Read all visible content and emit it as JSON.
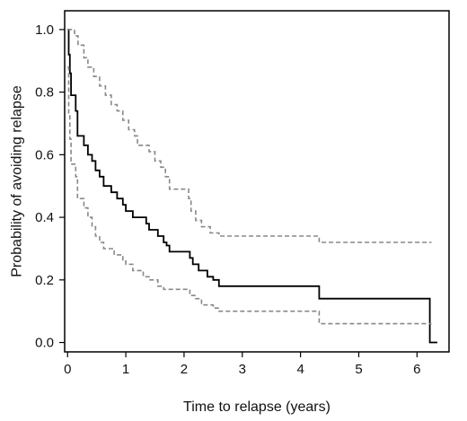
{
  "chart_data": {
    "type": "line",
    "title": "",
    "xlabel": "Time to relapse (years)",
    "ylabel": "Probability of avoiding relapse",
    "xlim": [
      -0.05,
      6.55
    ],
    "ylim": [
      -0.03,
      1.06
    ],
    "xticks": [
      0,
      1,
      2,
      3,
      4,
      5,
      6
    ],
    "xtick_labels": [
      "0",
      "1",
      "2",
      "3",
      "4",
      "5",
      "6"
    ],
    "yticks": [
      0.0,
      0.2,
      0.4,
      0.6,
      0.8,
      1.0
    ],
    "ytick_labels": [
      "0.0",
      "0.2",
      "0.4",
      "0.6",
      "0.8",
      "1.0"
    ],
    "grid": false,
    "legend": "none",
    "series": [
      {
        "role": "estimate",
        "style": "solid",
        "color": "#000000",
        "step": true,
        "points": [
          [
            0,
            1.0
          ],
          [
            0.02,
            0.92
          ],
          [
            0.04,
            0.86
          ],
          [
            0.06,
            0.79
          ],
          [
            0.14,
            0.74
          ],
          [
            0.17,
            0.66
          ],
          [
            0.28,
            0.63
          ],
          [
            0.35,
            0.6
          ],
          [
            0.42,
            0.58
          ],
          [
            0.48,
            0.55
          ],
          [
            0.55,
            0.53
          ],
          [
            0.62,
            0.5
          ],
          [
            0.75,
            0.48
          ],
          [
            0.85,
            0.46
          ],
          [
            0.95,
            0.44
          ],
          [
            1.0,
            0.42
          ],
          [
            1.12,
            0.4
          ],
          [
            1.35,
            0.38
          ],
          [
            1.4,
            0.36
          ],
          [
            1.55,
            0.34
          ],
          [
            1.65,
            0.32
          ],
          [
            1.7,
            0.31
          ],
          [
            1.75,
            0.29
          ],
          [
            2.1,
            0.27
          ],
          [
            2.15,
            0.25
          ],
          [
            2.25,
            0.23
          ],
          [
            2.4,
            0.21
          ],
          [
            2.5,
            0.2
          ],
          [
            2.6,
            0.18
          ],
          [
            4.32,
            0.14
          ],
          [
            6.22,
            0.0
          ],
          [
            6.35,
            0.0
          ]
        ]
      },
      {
        "role": "upper confidence limit",
        "style": "dashed",
        "color": "#888888",
        "step": true,
        "points": [
          [
            0,
            1.0
          ],
          [
            0.12,
            0.98
          ],
          [
            0.18,
            0.95
          ],
          [
            0.28,
            0.91
          ],
          [
            0.35,
            0.88
          ],
          [
            0.45,
            0.85
          ],
          [
            0.55,
            0.82
          ],
          [
            0.65,
            0.79
          ],
          [
            0.75,
            0.76
          ],
          [
            0.85,
            0.74
          ],
          [
            0.95,
            0.71
          ],
          [
            1.05,
            0.68
          ],
          [
            1.15,
            0.66
          ],
          [
            1.2,
            0.63
          ],
          [
            1.4,
            0.61
          ],
          [
            1.5,
            0.58
          ],
          [
            1.6,
            0.56
          ],
          [
            1.68,
            0.53
          ],
          [
            1.75,
            0.49
          ],
          [
            2.08,
            0.46
          ],
          [
            2.12,
            0.42
          ],
          [
            2.2,
            0.39
          ],
          [
            2.3,
            0.37
          ],
          [
            2.45,
            0.35
          ],
          [
            2.6,
            0.34
          ],
          [
            4.32,
            0.32
          ],
          [
            6.25,
            0.32
          ]
        ]
      },
      {
        "role": "lower confidence limit",
        "style": "dashed",
        "color": "#888888",
        "step": true,
        "points": [
          [
            0,
            0.88
          ],
          [
            0.02,
            0.73
          ],
          [
            0.04,
            0.65
          ],
          [
            0.06,
            0.57
          ],
          [
            0.14,
            0.53
          ],
          [
            0.17,
            0.46
          ],
          [
            0.28,
            0.43
          ],
          [
            0.35,
            0.4
          ],
          [
            0.42,
            0.37
          ],
          [
            0.48,
            0.34
          ],
          [
            0.55,
            0.32
          ],
          [
            0.62,
            0.3
          ],
          [
            0.8,
            0.28
          ],
          [
            0.95,
            0.26
          ],
          [
            1.0,
            0.25
          ],
          [
            1.12,
            0.23
          ],
          [
            1.3,
            0.21
          ],
          [
            1.4,
            0.2
          ],
          [
            1.55,
            0.18
          ],
          [
            1.65,
            0.17
          ],
          [
            2.1,
            0.15
          ],
          [
            2.2,
            0.14
          ],
          [
            2.3,
            0.12
          ],
          [
            2.5,
            0.11
          ],
          [
            2.6,
            0.1
          ],
          [
            4.32,
            0.06
          ],
          [
            6.25,
            0.06
          ]
        ]
      }
    ]
  }
}
